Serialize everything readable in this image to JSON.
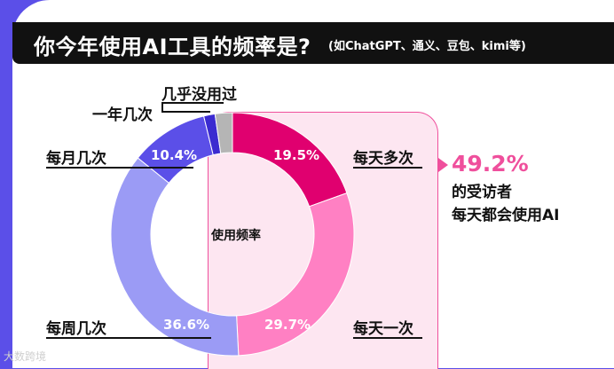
{
  "title": {
    "main": "你今年使用AI工具的频率是?",
    "sub": "(如ChatGPT、通义、豆包、kimi等)"
  },
  "highlight": {
    "percent": "49.2%",
    "line1": "的受访者",
    "line2": "每天都会使用AI"
  },
  "watermark": "大数跨境",
  "colors": {
    "background_purple": "#5b4fe8",
    "highlight_pink": "#ef4f9c",
    "box_fill": "#fde6f1"
  },
  "chart_data": {
    "type": "pie",
    "variant": "donut",
    "center_label": "使用频率",
    "slices": [
      {
        "label": "每天多次",
        "value": 19.5,
        "display": "19.5%",
        "color": "#e0006f"
      },
      {
        "label": "每天一次",
        "value": 29.7,
        "display": "29.7%",
        "color": "#ff80c3"
      },
      {
        "label": "每周几次",
        "value": 36.6,
        "display": "36.6%",
        "color": "#9b9bf5"
      },
      {
        "label": "每月几次",
        "value": 10.4,
        "display": "10.4%",
        "color": "#5b4fe8"
      },
      {
        "label": "一年几次",
        "value": 1.5,
        "display": "",
        "color": "#3b2bd0"
      },
      {
        "label": "几乎没用过",
        "value": 2.3,
        "display": "",
        "color": "#b5b5b5"
      }
    ]
  }
}
